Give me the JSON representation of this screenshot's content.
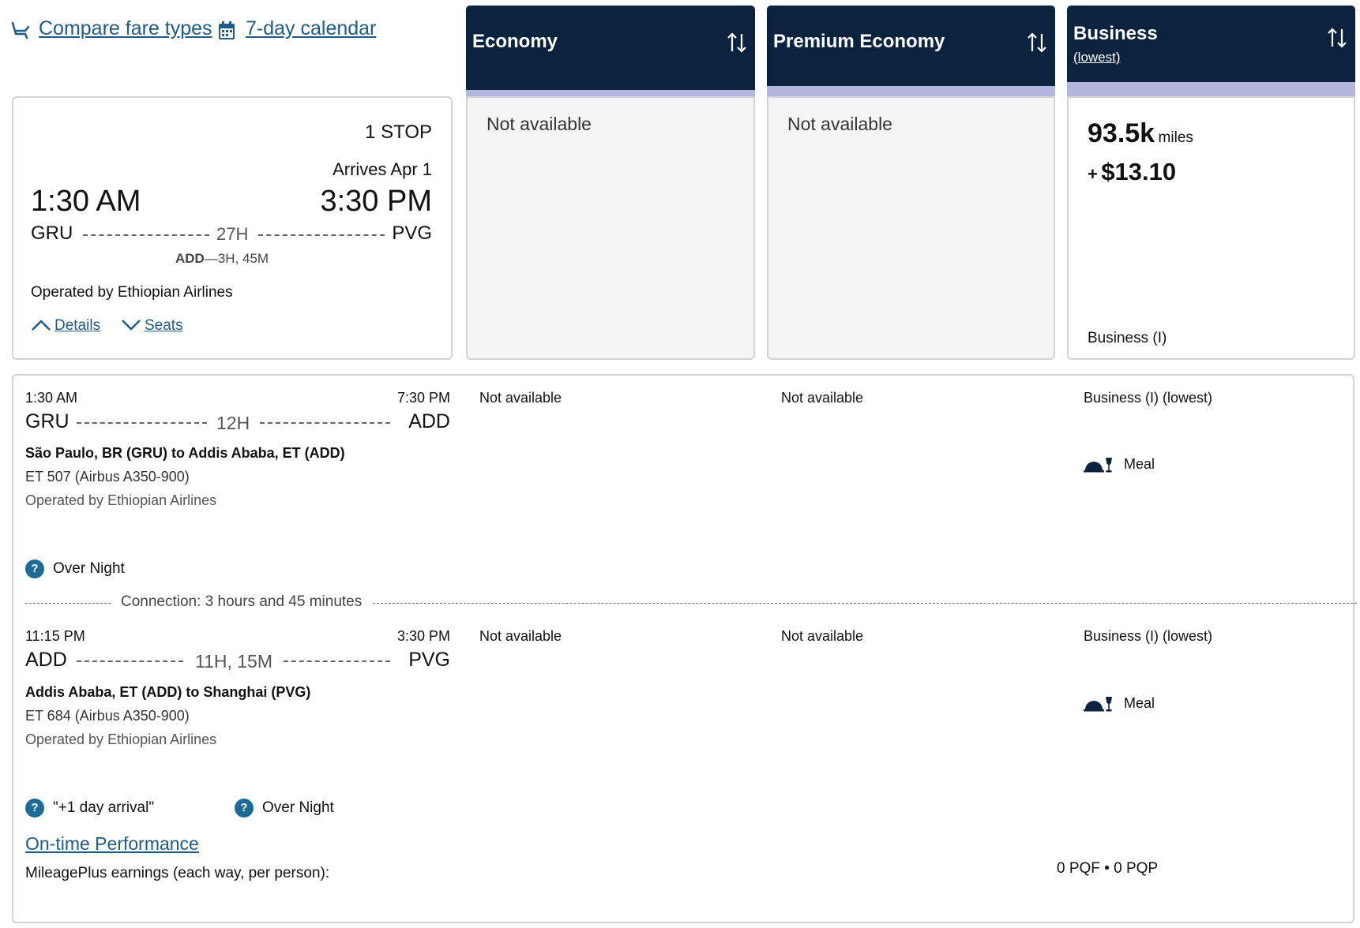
{
  "toolbar": {
    "compare_label": "Compare fare types",
    "calendar_label": "7-day calendar"
  },
  "summary": {
    "stops": "1 STOP",
    "arrives": "Arrives Apr 1",
    "depart_time": "1:30 AM",
    "arrive_time": "3:30 PM",
    "origin": "GRU",
    "destination": "PVG",
    "duration": "27H",
    "layover_airport": "ADD",
    "layover_sep": "—",
    "layover_time": "3H, 45M",
    "operated_by": "Operated by Ethiopian Airlines",
    "details_label": "Details",
    "seats_label": "Seats"
  },
  "fare_columns": [
    {
      "title": "Economy",
      "subtitle": "",
      "status": "Not available"
    },
    {
      "title": "Premium Economy",
      "subtitle": "",
      "status": "Not available"
    },
    {
      "title": "Business",
      "subtitle": "(lowest)",
      "miles": "93.5k",
      "miles_unit": "miles",
      "plus": "+",
      "tax": "$13.10",
      "cabin": "Business (I)"
    }
  ],
  "segments": [
    {
      "depart_time": "1:30 AM",
      "arrive_time": "7:30 PM",
      "origin": "GRU",
      "destination": "ADD",
      "duration": "12H",
      "route": "São Paulo, BR (GRU) to Addis Ababa, ET (ADD)",
      "flight": "ET 507 (Airbus A350-900)",
      "operated_by": "Operated by Ethiopian Airlines",
      "economy": "Not available",
      "premium": "Not available",
      "business": "Business (I) (lowest)",
      "meal": "Meal",
      "notes": [
        "Over Night"
      ]
    },
    {
      "depart_time": "11:15 PM",
      "arrive_time": "3:30 PM",
      "origin": "ADD",
      "destination": "PVG",
      "duration": "11H, 15M",
      "route": "Addis Ababa, ET (ADD) to Shanghai (PVG)",
      "flight": "ET 684 (Airbus A350-900)",
      "operated_by": "Operated by Ethiopian Airlines",
      "economy": "Not available",
      "premium": "Not available",
      "business": "Business (I) (lowest)",
      "meal": "Meal",
      "notes": [
        "\"+1 day arrival\"",
        "Over Night"
      ]
    }
  ],
  "connection": "Connection: 3 hours and 45 minutes",
  "footer": {
    "ontime_label": "On-time Performance",
    "earnings_label": "MileagePlus earnings (each way, per person):",
    "pqf": "0 PQF",
    "bullet": "•",
    "pqp": "0 PQP"
  },
  "icons": {
    "seat": "seat-icon",
    "calendar": "calendar-icon",
    "sort": "sort-arrows-icon",
    "meal": "meal-icon",
    "help": "question-circle-icon",
    "chevron_up": "chevron-up-icon",
    "chevron_down": "chevron-down-icon"
  },
  "colors": {
    "header_bg": "#0c2340",
    "strip": "#b5b6e0",
    "link": "#1f5b86",
    "help": "#1e6a96"
  }
}
